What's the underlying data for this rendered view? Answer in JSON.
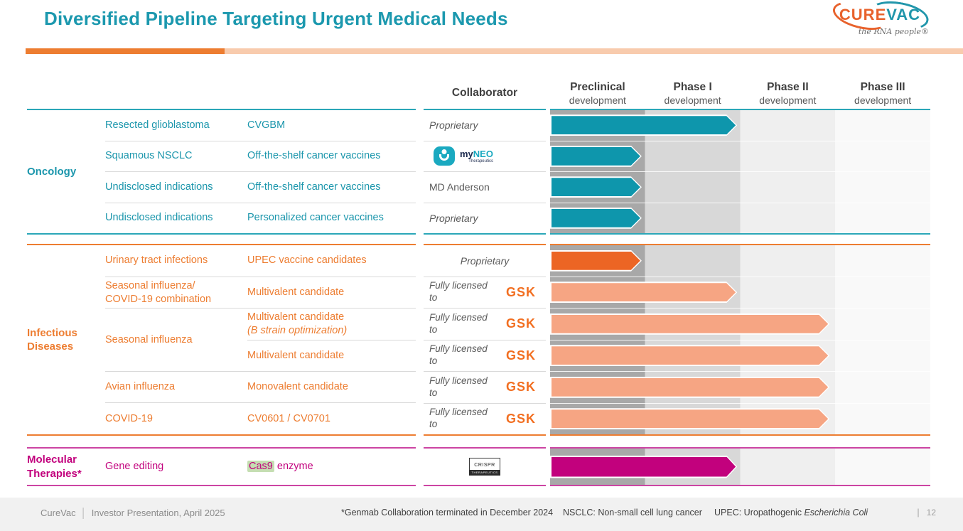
{
  "slide": {
    "title": "Diversified Pipeline Targeting Urgent Medical Needs",
    "logo": {
      "brand_left": "CURE",
      "brand_right": "VAC",
      "tagline": "the RNA people®"
    }
  },
  "header": {
    "collaborator": "Collaborator",
    "phases": [
      {
        "name": "Preclinical",
        "sub": "development"
      },
      {
        "name": "Phase I",
        "sub": "development"
      },
      {
        "name": "Phase II",
        "sub": "development"
      },
      {
        "name": "Phase III",
        "sub": "development"
      }
    ]
  },
  "logos": {
    "myneo": {
      "prefix": "my",
      "accent": "NEO",
      "sub": "Therapeutics"
    },
    "gsk": "GSK",
    "crispr": {
      "name": "CRISPR",
      "sub": "THERAPEUTICS"
    }
  },
  "sections": [
    {
      "label": "Oncology",
      "rows": [
        {
          "indication": "Resected glioblastoma",
          "candidate": "CVGBM",
          "collaborator": "Proprietary",
          "stage": "Phase I"
        },
        {
          "indication": "Squamous NSCLC",
          "candidate": "Off-the-shelf cancer vaccines",
          "collaborator": "myNEO Therapeutics",
          "stage": "Preclinical"
        },
        {
          "indication": "Undisclosed indications",
          "candidate": "Off-the-shelf cancer vaccines",
          "collaborator": "MD Anderson",
          "stage": "Preclinical"
        },
        {
          "indication": "Undisclosed indications",
          "candidate": "Personalized cancer vaccines",
          "collaborator": "Proprietary",
          "stage": "Preclinical"
        }
      ]
    },
    {
      "label": "Infectious Diseases",
      "licensed_text": "Fully licensed to",
      "rows": [
        {
          "indication": "Urinary tract infections",
          "candidate": "UPEC vaccine candidates",
          "collaborator": "Proprietary",
          "stage": "Preclinical"
        },
        {
          "indication_line1": "Seasonal influenza/",
          "indication_line2": "COVID-19 combination",
          "candidate": "Multivalent candidate",
          "collaborator": "GSK",
          "stage": "Phase I"
        },
        {
          "indication": "Seasonal influenza",
          "candidate": "Multivalent candidate",
          "candidate_note": "(B strain optimization)",
          "collaborator": "GSK",
          "stage": "Phase II"
        },
        {
          "candidate": "Multivalent candidate",
          "collaborator": "GSK",
          "stage": "Phase II"
        },
        {
          "indication": "Avian influenza",
          "candidate": "Monovalent candidate",
          "collaborator": "GSK",
          "stage": "Phase II"
        },
        {
          "indication": "COVID-19",
          "candidate": "CV0601 / CV0701",
          "collaborator": "GSK",
          "stage": "Phase II"
        }
      ]
    },
    {
      "label": "Molecular Therapies*",
      "rows": [
        {
          "indication": "Gene editing",
          "candidate_highlight": "Cas9",
          "candidate_rest": " enzyme",
          "collaborator": "CRISPR Therapeutics",
          "stage": "Phase I"
        }
      ]
    }
  ],
  "footer": {
    "brand": "CureVac",
    "divider": "│",
    "left_text": "Investor Presentation, April 2025",
    "note_genmab": "*Genmab Collaboration terminated in December 2024",
    "note_nsclc": "NSCLC: Non-small cell lung cancer",
    "note_upec_prefix": "UPEC: Uropathogenic ",
    "note_upec_italic": "Escherichia Coli",
    "page_divider": "|",
    "page_number": "12"
  },
  "colors": {
    "teal": "#0e96ac",
    "orange": "#ed7d31",
    "orange_dark": "#ec6524",
    "salmon": "#f6a583",
    "magenta": "#c2017d",
    "accent_light": "#f8cbad"
  }
}
